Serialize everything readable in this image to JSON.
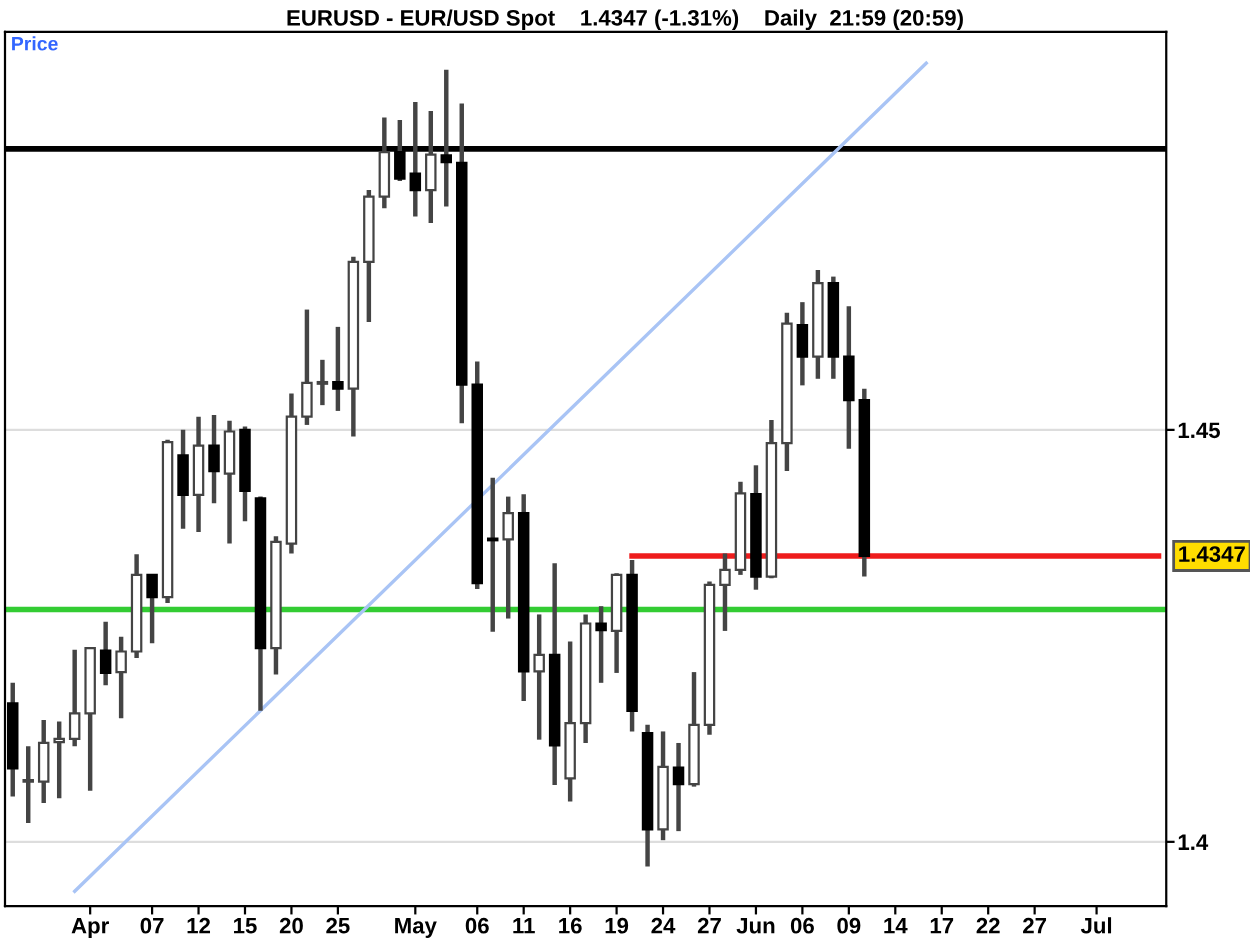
{
  "chart_data": {
    "type": "candlestick",
    "title": "EURUSD - EUR/USD Spot    1.4347 (-1.31%)    Daily  21:59 (20:59)",
    "categories": [
      null,
      null,
      null,
      null,
      null,
      "Apr",
      null,
      null,
      null,
      "07",
      null,
      null,
      "12",
      null,
      null,
      "15",
      null,
      null,
      "20",
      null,
      null,
      "25",
      null,
      null,
      null,
      null,
      "May",
      null,
      null,
      null,
      "06",
      null,
      null,
      "11",
      null,
      null,
      "16",
      null,
      null,
      "19",
      null,
      null,
      "24",
      null,
      null,
      "27",
      null,
      null,
      "Jun",
      null,
      null,
      "06",
      null,
      null,
      "09",
      null,
      null,
      "14",
      null,
      null,
      "17",
      null,
      null,
      "22",
      null,
      null,
      "27",
      null,
      null,
      null,
      "Jul",
      null,
      null,
      null,
      null
    ],
    "ohlc": [
      [
        1.4168,
        1.4193,
        1.4055,
        1.4089
      ],
      [
        1.4073,
        1.4116,
        1.4023,
        1.4075
      ],
      [
        1.4073,
        1.4148,
        1.4047,
        1.412
      ],
      [
        1.4121,
        1.4146,
        1.4053,
        1.4125
      ],
      [
        1.4125,
        1.4233,
        1.4116,
        1.4156
      ],
      [
        1.4156,
        1.4236,
        1.4062,
        1.4235
      ],
      [
        1.4232,
        1.4267,
        1.419,
        1.4205
      ],
      [
        1.4206,
        1.4249,
        1.415,
        1.4231
      ],
      [
        1.4231,
        1.4349,
        1.4223,
        1.4324
      ],
      [
        1.4324,
        1.4325,
        1.4241,
        1.4297
      ],
      [
        1.4297,
        1.4488,
        1.429,
        1.4485
      ],
      [
        1.4469,
        1.45,
        1.438,
        1.4421
      ],
      [
        1.4421,
        1.4516,
        1.4376,
        1.4481
      ],
      [
        1.4481,
        1.4518,
        1.4411,
        1.445
      ],
      [
        1.4447,
        1.4511,
        1.4362,
        1.4498
      ],
      [
        1.45,
        1.4504,
        1.4389,
        1.4426
      ],
      [
        1.4417,
        1.4419,
        1.4159,
        1.4235
      ],
      [
        1.4235,
        1.4371,
        1.4203,
        1.4364
      ],
      [
        1.4362,
        1.4544,
        1.435,
        1.4516
      ],
      [
        1.4516,
        1.4646,
        1.4506,
        1.4557
      ],
      [
        1.4556,
        1.4585,
        1.453,
        1.4558
      ],
      [
        1.4558,
        1.4625,
        1.4523,
        1.455
      ],
      [
        1.455,
        1.471,
        1.4492,
        1.4704
      ],
      [
        1.4704,
        1.4791,
        1.4631,
        1.4783
      ],
      [
        1.4783,
        1.4879,
        1.4769,
        1.4837
      ],
      [
        1.4837,
        1.4876,
        1.4802,
        1.4805
      ],
      [
        1.4811,
        1.4898,
        1.4759,
        1.4791
      ],
      [
        1.4791,
        1.4887,
        1.4751,
        1.4834
      ],
      [
        1.4833,
        1.4937,
        1.4771,
        1.4825
      ],
      [
        1.4824,
        1.4896,
        1.4508,
        1.4555
      ],
      [
        1.4555,
        1.4583,
        1.4307,
        1.4314
      ],
      [
        1.4368,
        1.4442,
        1.4255,
        1.4366
      ],
      [
        1.4367,
        1.4419,
        1.4271,
        1.4399
      ],
      [
        1.4399,
        1.4422,
        1.4171,
        1.4207
      ],
      [
        1.4207,
        1.4276,
        1.4124,
        1.4227
      ],
      [
        1.4227,
        1.4338,
        1.4069,
        1.4117
      ],
      [
        1.4077,
        1.4243,
        1.4049,
        1.4144
      ],
      [
        1.4144,
        1.4276,
        1.412,
        1.4265
      ],
      [
        1.4265,
        1.4286,
        1.4193,
        1.4257
      ],
      [
        1.4256,
        1.4326,
        1.4205,
        1.4324
      ],
      [
        1.4324,
        1.4342,
        1.4134,
        1.4159
      ],
      [
        1.4132,
        1.4142,
        1.397,
        1.4015
      ],
      [
        1.4015,
        1.4134,
        1.4002,
        1.4091
      ],
      [
        1.409,
        1.412,
        1.4013,
        1.407
      ],
      [
        1.407,
        1.4206,
        1.4067,
        1.4142
      ],
      [
        1.4142,
        1.4316,
        1.413,
        1.4312
      ],
      [
        1.4312,
        1.435,
        1.4256,
        1.433
      ],
      [
        1.433,
        1.4437,
        1.4324,
        1.4423
      ],
      [
        1.4422,
        1.4457,
        1.4306,
        1.4322
      ],
      [
        1.4322,
        1.4512,
        1.432,
        1.4484
      ],
      [
        1.4484,
        1.4642,
        1.445,
        1.4629
      ],
      [
        1.4627,
        1.4655,
        1.4554,
        1.4589
      ],
      [
        1.4589,
        1.4694,
        1.4562,
        1.4678
      ],
      [
        1.4678,
        1.4686,
        1.4562,
        1.4589
      ],
      [
        1.4589,
        1.465,
        1.4477,
        1.4536
      ],
      [
        1.4536,
        1.455,
        1.4322,
        1.4347
      ],
      null,
      null,
      null,
      null,
      null,
      null,
      null,
      null,
      null,
      null,
      null,
      null,
      null,
      null,
      null,
      null,
      null,
      null,
      null
    ],
    "series": [
      {
        "type": "line",
        "color": "#ee1c1c",
        "values": [
          null,
          null,
          null,
          null,
          null,
          null,
          null,
          null,
          null,
          null,
          null,
          null,
          null,
          null,
          null,
          null,
          null,
          null,
          null,
          null,
          null,
          null,
          null,
          null,
          null,
          null,
          null,
          null,
          null,
          null,
          null,
          null,
          null,
          null,
          null,
          null,
          null,
          null,
          null,
          null,
          1.4347,
          1.4347,
          1.4347,
          1.4347,
          1.4347,
          1.4347,
          1.4347,
          1.4347,
          1.4347,
          1.4347,
          1.4347,
          1.4347,
          1.4347,
          1.4347,
          1.4347,
          1.4347,
          1.4347,
          1.4347,
          1.4347,
          1.4347,
          1.4347,
          1.4347,
          1.4347,
          1.4347,
          1.4347,
          1.4347,
          1.4347,
          1.4347,
          1.4347,
          1.4347,
          1.4347,
          1.4347,
          1.4347,
          1.4347,
          1.4347
        ]
      },
      {
        "type": "line",
        "color": "#a9c4f5",
        "values": [
          null,
          null,
          null,
          null,
          1.394,
          null,
          null,
          null,
          null,
          null,
          null,
          null,
          null,
          null,
          null,
          null,
          null,
          null,
          null,
          null,
          null,
          null,
          null,
          null,
          null,
          null,
          null,
          null,
          null,
          null,
          null,
          null,
          null,
          null,
          null,
          null,
          null,
          null,
          null,
          null,
          null,
          null,
          null,
          null,
          null,
          null,
          null,
          null,
          null,
          null,
          null,
          null,
          null,
          null,
          null,
          null,
          null,
          null,
          null,
          1.4945,
          null,
          null,
          null,
          null,
          null,
          null,
          null,
          null,
          null,
          null,
          null,
          null,
          null,
          null,
          null
        ]
      }
    ],
    "ref_lines": [
      {
        "axis": "y",
        "value": 1.4841,
        "color": "#000000"
      },
      {
        "axis": "y",
        "value": 1.4282,
        "color": "#33cc33"
      }
    ],
    "annotations": [
      "Price",
      "1.4347"
    ],
    "ylim": [
      1.3922,
      1.4983
    ],
    "yticks": [
      1.4,
      1.45
    ],
    "grid": "y"
  }
}
